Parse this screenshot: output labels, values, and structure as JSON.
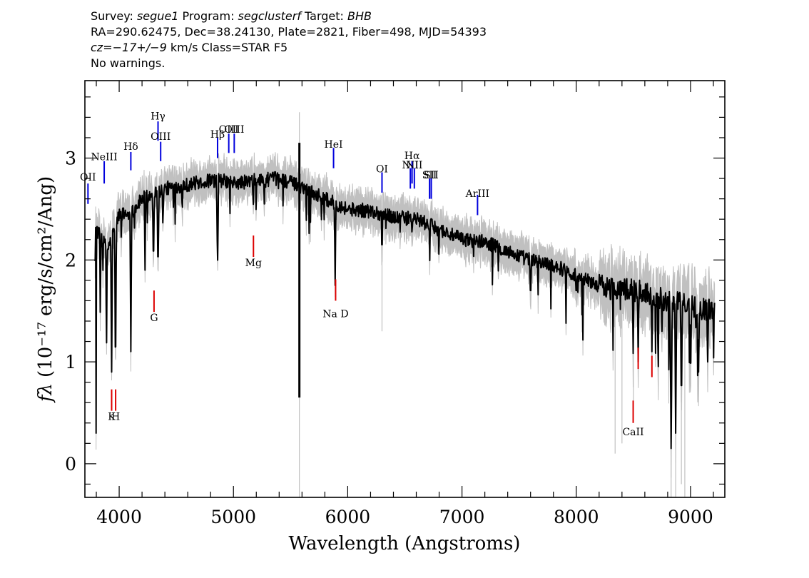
{
  "header": {
    "survey_label": "Survey: ",
    "survey": "segue1",
    "program_label": " Program: ",
    "program": "segclusterf",
    "target_label": " Target: ",
    "target": "BHB",
    "line2": "RA=290.62475, Dec=38.24130, Plate=2821, Fiber=498, MJD=54393",
    "cz_label": "cz=",
    "cz_value": "−17+/−9",
    "cz_rest": " km/s Class=STAR F5",
    "line4": "No warnings."
  },
  "chart_data": {
    "type": "line",
    "xlabel": "Wavelength (Angstroms)",
    "ylabel_text": "(10⁻¹⁷ erg/s/cm²/Ang)",
    "ylabel_symbol": "fλ",
    "xlim": [
      3700,
      9300
    ],
    "ylim": [
      -0.33,
      3.76
    ],
    "x_ticks": [
      4000,
      5000,
      6000,
      7000,
      8000,
      9000
    ],
    "x_tick_labels": [
      "4000",
      "5000",
      "6000",
      "7000",
      "8000",
      "9000"
    ],
    "y_ticks": [
      0,
      1,
      2,
      3
    ],
    "y_tick_labels": [
      "0",
      "1",
      "2",
      "3"
    ],
    "x_minor_step": 200,
    "y_minor_step": 0.2,
    "grid": false,
    "series": [
      {
        "role": "flux",
        "color": "#000000",
        "continuum": [
          [
            3800,
            2.3
          ],
          [
            3900,
            2.1
          ],
          [
            4000,
            2.45
          ],
          [
            4100,
            2.45
          ],
          [
            4200,
            2.6
          ],
          [
            4300,
            2.65
          ],
          [
            4400,
            2.7
          ],
          [
            4500,
            2.72
          ],
          [
            4600,
            2.74
          ],
          [
            4700,
            2.76
          ],
          [
            4800,
            2.78
          ],
          [
            4900,
            2.78
          ],
          [
            5000,
            2.75
          ],
          [
            5200,
            2.78
          ],
          [
            5400,
            2.8
          ],
          [
            5600,
            2.72
          ],
          [
            5800,
            2.6
          ],
          [
            6000,
            2.5
          ],
          [
            6200,
            2.48
          ],
          [
            6400,
            2.42
          ],
          [
            6600,
            2.4
          ],
          [
            6800,
            2.3
          ],
          [
            7000,
            2.2
          ],
          [
            7200,
            2.18
          ],
          [
            7400,
            2.08
          ],
          [
            7600,
            2.0
          ],
          [
            7800,
            1.95
          ],
          [
            8000,
            1.85
          ],
          [
            8200,
            1.75
          ],
          [
            8400,
            1.72
          ],
          [
            8600,
            1.68
          ],
          [
            8800,
            1.6
          ],
          [
            9000,
            1.55
          ],
          [
            9200,
            1.5
          ]
        ],
        "absorption": [
          [
            3798,
            0.3,
            4
          ],
          [
            3835,
            1.3,
            5
          ],
          [
            3889,
            1.0,
            6
          ],
          [
            3934,
            0.9,
            8
          ],
          [
            3968,
            0.75,
            8
          ],
          [
            4102,
            1.1,
            8
          ],
          [
            4226,
            1.9,
            6
          ],
          [
            4300,
            1.9,
            8
          ],
          [
            4340,
            1.85,
            9
          ],
          [
            4383,
            2.3,
            6
          ],
          [
            4861,
            1.9,
            9
          ],
          [
            5173,
            2.5,
            6
          ],
          [
            5270,
            2.55,
            5
          ],
          [
            5890,
            1.75,
            7
          ],
          [
            6300,
            1.95,
            5
          ],
          [
            6563,
            2.25,
            6
          ],
          [
            7600,
            1.6,
            8
          ],
          [
            8000,
            1.65,
            8
          ],
          [
            8300,
            1.55,
            6
          ],
          [
            8498,
            1.1,
            6
          ],
          [
            8542,
            1.0,
            6
          ],
          [
            8662,
            1.1,
            6
          ],
          [
            8750,
            1.3,
            6
          ],
          [
            8830,
            0.15,
            10
          ],
          [
            8870,
            0.3,
            8
          ],
          [
            8920,
            0.5,
            8
          ],
          [
            9000,
            0.8,
            8
          ],
          [
            9070,
            0.9,
            8
          ],
          [
            9150,
            1.0,
            8
          ]
        ],
        "spikes": [
          [
            5577,
            3.15,
            0.65
          ]
        ]
      },
      {
        "role": "error",
        "color": "#c0c0c0",
        "spikes": [
          [
            5577,
            3.45,
            -0.33
          ],
          [
            6300,
            2.5,
            1.3
          ],
          [
            8340,
            1.9,
            0.1
          ],
          [
            8400,
            1.8,
            0.2
          ],
          [
            8500,
            1.8,
            0.5
          ],
          [
            8830,
            1.6,
            -0.33
          ],
          [
            8870,
            1.6,
            -0.33
          ],
          [
            8920,
            1.6,
            -0.2
          ],
          [
            8950,
            1.6,
            -0.33
          ]
        ]
      }
    ],
    "emission_lines": [
      {
        "label": "OII",
        "x": 3727,
        "y_label": 2.78,
        "y1": 2.55,
        "y2": 2.75
      },
      {
        "label": "NeIII",
        "x": 3869,
        "y_label": 2.98,
        "y1": 2.75,
        "y2": 2.97
      },
      {
        "label": "Hδ",
        "x": 4102,
        "y_label": 3.08,
        "y1": 2.88,
        "y2": 3.06
      },
      {
        "label": "Hγ",
        "x": 4340,
        "y_label": 3.38,
        "y1": 3.17,
        "y2": 3.36
      },
      {
        "label": "OIII",
        "x": 4363,
        "y_label": 3.18,
        "y1": 2.97,
        "y2": 3.16
      },
      {
        "label": "Hβ",
        "x": 4861,
        "y_label": 3.2,
        "y1": 3.0,
        "y2": 3.2
      },
      {
        "label": "OIII",
        "x": 4959,
        "y_label": 3.25,
        "y1": 3.05,
        "y2": 3.24
      },
      {
        "label": "OIII",
        "x": 5007,
        "y_label": 3.25,
        "y1": 3.05,
        "y2": 3.24
      },
      {
        "label": "HeI",
        "x": 5876,
        "y_label": 3.1,
        "y1": 2.9,
        "y2": 3.1
      },
      {
        "label": "OI",
        "x": 6300,
        "y_label": 2.86,
        "y1": 2.66,
        "y2": 2.86
      },
      {
        "label": "NII",
        "x": 6548,
        "y_label": 2.9,
        "y1": 2.7,
        "y2": 2.9
      },
      {
        "label": "Hα",
        "x": 6563,
        "y_label": 2.99,
        "y1": 2.75,
        "y2": 2.97
      },
      {
        "label": "NII",
        "x": 6583,
        "y_label": 2.9,
        "y1": 2.7,
        "y2": 2.9
      },
      {
        "label": "SII",
        "x": 6716,
        "y_label": 2.8,
        "y1": 2.6,
        "y2": 2.8
      },
      {
        "label": "SII",
        "x": 6731,
        "y_label": 2.8,
        "y1": 2.6,
        "y2": 2.8
      },
      {
        "label": "ArIII",
        "x": 7136,
        "y_label": 2.62,
        "y1": 2.44,
        "y2": 2.64
      }
    ],
    "absorption_lines": [
      {
        "label": "K",
        "x": 3934,
        "y_label": 0.43,
        "y1": 0.52,
        "y2": 0.73
      },
      {
        "label": "H",
        "x": 3969,
        "y_label": 0.43,
        "y1": 0.52,
        "y2": 0.73
      },
      {
        "label": "G",
        "x": 4305,
        "y_label": 1.4,
        "y1": 1.49,
        "y2": 1.7
      },
      {
        "label": "Mg",
        "x": 5175,
        "y_label": 1.94,
        "y1": 2.03,
        "y2": 2.24
      },
      {
        "label": "Na D",
        "x": 5894,
        "y_label": 1.44,
        "y1": 1.6,
        "y2": 1.81
      },
      {
        "label": "CaII",
        "x": 8498,
        "y_label": 0.28,
        "y1": 0.4,
        "y2": 0.62
      },
      {
        "label": "CaII",
        "x": 8542,
        "y_label": null,
        "y1": 0.93,
        "y2": 1.14
      },
      {
        "label": "CaII",
        "x": 8662,
        "y_label": null,
        "y1": 0.85,
        "y2": 1.06
      }
    ],
    "emission_color": "#0000dd",
    "absorption_color": "#dd0000"
  }
}
